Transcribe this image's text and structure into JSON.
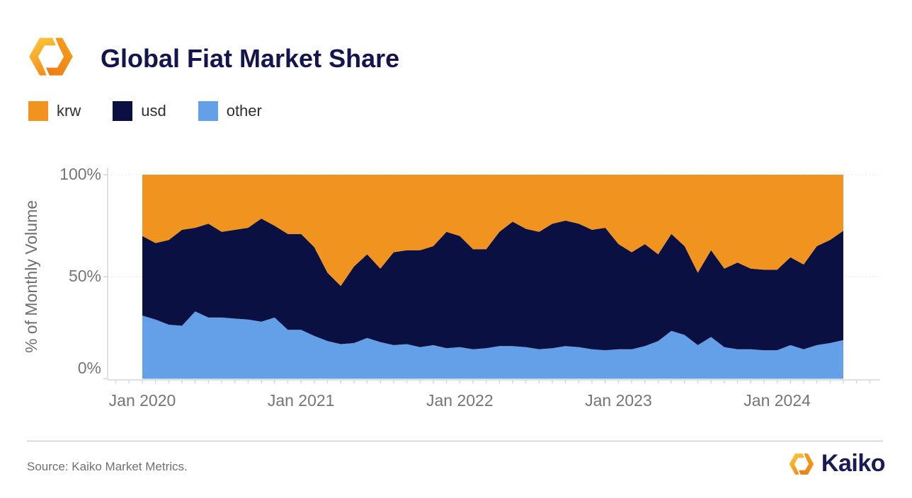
{
  "header": {
    "title": "Global Fiat Market Share"
  },
  "legend": {
    "items": [
      {
        "label": "krw",
        "color": "#F0941F"
      },
      {
        "label": "usd",
        "color": "#0A1042"
      },
      {
        "label": "other",
        "color": "#64A0E7"
      }
    ]
  },
  "chart_data": {
    "type": "area",
    "stacked": true,
    "title": "Global Fiat Market Share",
    "xlabel": "",
    "ylabel": "% of Monthly Volume",
    "unit": "%",
    "ylim": [
      0,
      100
    ],
    "y_tick_labels": [
      "0%",
      "50%",
      "100%"
    ],
    "x_tick_labels": [
      "Jan 2020",
      "Jan 2021",
      "Jan 2022",
      "Jan 2023",
      "Jan 2024"
    ],
    "grid": "horizontal-faint",
    "legend_position": "top-left",
    "stack_order_bottom_to_top": [
      "other",
      "usd",
      "krw"
    ],
    "x": [
      "Jan 2020",
      "Feb 2020",
      "Mar 2020",
      "Apr 2020",
      "May 2020",
      "Jun 2020",
      "Jul 2020",
      "Aug 2020",
      "Sep 2020",
      "Oct 2020",
      "Nov 2020",
      "Dec 2020",
      "Jan 2021",
      "Feb 2021",
      "Mar 2021",
      "Apr 2021",
      "May 2021",
      "Jun 2021",
      "Jul 2021",
      "Aug 2021",
      "Sep 2021",
      "Oct 2021",
      "Nov 2021",
      "Dec 2021",
      "Jan 2022",
      "Feb 2022",
      "Mar 2022",
      "Apr 2022",
      "May 2022",
      "Jun 2022",
      "Jul 2022",
      "Aug 2022",
      "Sep 2022",
      "Oct 2022",
      "Nov 2022",
      "Dec 2022",
      "Jan 2023",
      "Feb 2023",
      "Mar 2023",
      "Apr 2023",
      "May 2023",
      "Jun 2023",
      "Jul 2023",
      "Aug 2023",
      "Sep 2023",
      "Oct 2023",
      "Nov 2023",
      "Dec 2023",
      "Jan 2024",
      "Feb 2024",
      "Mar 2024",
      "Apr 2024",
      "May 2024",
      "Jun 2024"
    ],
    "series": [
      {
        "name": "krw",
        "color": "#F0941F",
        "values": [
          30,
          33.5,
          32,
          27,
          26,
          24,
          28,
          27,
          26,
          21.5,
          25,
          29,
          29,
          35.5,
          48,
          54.5,
          45,
          39,
          46,
          38,
          37,
          37,
          35,
          28,
          30,
          36.5,
          36.5,
          28,
          23,
          26.5,
          28,
          24,
          22.5,
          24,
          27,
          26,
          34,
          38,
          34,
          39,
          29,
          35,
          48,
          37,
          46,
          43,
          46,
          46.5,
          46.5,
          40.5,
          44,
          35,
          32,
          27.5
        ]
      },
      {
        "name": "usd",
        "color": "#0A1042",
        "values": [
          39,
          37.5,
          41.5,
          47,
          41,
          46,
          42,
          43.5,
          45,
          50.5,
          45,
          47,
          47,
          43.5,
          33.5,
          28.5,
          37.5,
          41,
          36,
          45.5,
          46,
          47.5,
          48.5,
          57,
          54.5,
          49,
          48.5,
          56,
          61,
          58,
          57.5,
          61,
          61.5,
          60.5,
          58.5,
          60,
          51.5,
          47.5,
          50,
          42.5,
          47.5,
          43.5,
          35.5,
          42.5,
          38.5,
          42.5,
          39.5,
          39.5,
          39.5,
          43,
          41.5,
          48.5,
          50.5,
          53.5
        ]
      },
      {
        "name": "other",
        "color": "#64A0E7",
        "values": [
          31,
          29,
          26.5,
          26,
          33,
          30,
          30,
          29.5,
          29,
          28,
          30,
          24,
          24,
          21,
          18.5,
          17,
          17.5,
          20,
          18,
          16.5,
          17,
          15.5,
          16.5,
          15,
          15.5,
          14.5,
          15,
          16,
          16,
          15.5,
          14.5,
          15,
          16,
          15.5,
          14.5,
          14,
          14.5,
          14.5,
          16,
          18.5,
          23.5,
          21.5,
          16.5,
          20.5,
          15.5,
          14.5,
          14.5,
          14,
          14,
          16.5,
          14.5,
          16.5,
          17.5,
          19
        ]
      }
    ]
  },
  "footer": {
    "source": "Source: Kaiko Market Metrics.",
    "brand": "Kaiko"
  }
}
